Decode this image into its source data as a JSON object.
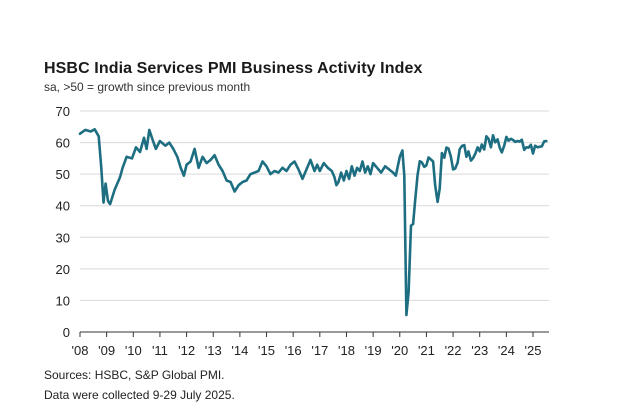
{
  "title": "HSBC India Services PMI Business Activity Index",
  "subtitle": "sa, >50 = growth since previous month",
  "sources": "Sources: HSBC, S&P Global PMI.",
  "collection_note": "Data were collected 9-29 July 2025.",
  "colors": {
    "line": "#1e6e82",
    "grid": "#d9d9d9",
    "axis": "#333333",
    "text": "#222222"
  },
  "chart_data": {
    "type": "line",
    "title": "HSBC India Services PMI Business Activity Index",
    "subtitle": "sa, >50 = growth since previous month",
    "xlabel": "",
    "ylabel": "",
    "ylim": [
      0,
      70
    ],
    "yticks": [
      0,
      10,
      20,
      30,
      40,
      50,
      60,
      70
    ],
    "xlim": [
      2008.0,
      2025.6
    ],
    "xtick_labels": [
      "'08",
      "'09",
      "'10",
      "'11",
      "'12",
      "'13",
      "'14",
      "'15",
      "'16",
      "'17",
      "'18",
      "'19",
      "'20",
      "'21",
      "'22",
      "'23",
      "'24",
      "'25"
    ],
    "grid": "horizontal",
    "series": [
      {
        "values": [
          [
            2008.0,
            62.8
          ],
          [
            2008.2,
            64.0
          ],
          [
            2008.4,
            63.5
          ],
          [
            2008.55,
            64.2
          ],
          [
            2008.7,
            62.0
          ],
          [
            2008.8,
            52.0
          ],
          [
            2008.88,
            41.0
          ],
          [
            2008.96,
            47.0
          ],
          [
            2009.05,
            41.5
          ],
          [
            2009.13,
            40.5
          ],
          [
            2009.3,
            45.0
          ],
          [
            2009.5,
            49.0
          ],
          [
            2009.6,
            52.0
          ],
          [
            2009.75,
            55.5
          ],
          [
            2009.95,
            55.0
          ],
          [
            2010.1,
            58.5
          ],
          [
            2010.25,
            57.0
          ],
          [
            2010.4,
            61.5
          ],
          [
            2010.5,
            58.0
          ],
          [
            2010.6,
            64.0
          ],
          [
            2010.72,
            61.0
          ],
          [
            2010.85,
            58.0
          ],
          [
            2011.0,
            60.5
          ],
          [
            2011.2,
            59.0
          ],
          [
            2011.35,
            60.0
          ],
          [
            2011.5,
            58.0
          ],
          [
            2011.65,
            55.5
          ],
          [
            2011.78,
            52.0
          ],
          [
            2011.9,
            49.5
          ],
          [
            2012.0,
            53.0
          ],
          [
            2012.15,
            54.0
          ],
          [
            2012.3,
            58.0
          ],
          [
            2012.45,
            52.0
          ],
          [
            2012.6,
            55.5
          ],
          [
            2012.75,
            53.5
          ],
          [
            2012.9,
            54.5
          ],
          [
            2013.05,
            56.0
          ],
          [
            2013.2,
            53.0
          ],
          [
            2013.35,
            51.0
          ],
          [
            2013.5,
            48.0
          ],
          [
            2013.65,
            47.5
          ],
          [
            2013.8,
            44.5
          ],
          [
            2013.95,
            46.5
          ],
          [
            2014.1,
            47.5
          ],
          [
            2014.25,
            48.0
          ],
          [
            2014.4,
            50.0
          ],
          [
            2014.55,
            50.5
          ],
          [
            2014.7,
            51.0
          ],
          [
            2014.85,
            54.0
          ],
          [
            2015.0,
            52.5
          ],
          [
            2015.15,
            50.0
          ],
          [
            2015.3,
            51.0
          ],
          [
            2015.45,
            50.5
          ],
          [
            2015.6,
            52.0
          ],
          [
            2015.75,
            51.0
          ],
          [
            2015.9,
            53.0
          ],
          [
            2016.05,
            54.0
          ],
          [
            2016.2,
            51.5
          ],
          [
            2016.35,
            48.5
          ],
          [
            2016.5,
            51.5
          ],
          [
            2016.65,
            54.5
          ],
          [
            2016.8,
            51.0
          ],
          [
            2016.9,
            53.0
          ],
          [
            2017.0,
            51.0
          ],
          [
            2017.15,
            53.5
          ],
          [
            2017.3,
            52.0
          ],
          [
            2017.45,
            51.0
          ],
          [
            2017.55,
            49.0
          ],
          [
            2017.62,
            46.5
          ],
          [
            2017.7,
            47.5
          ],
          [
            2017.8,
            50.5
          ],
          [
            2017.9,
            48.0
          ],
          [
            2018.0,
            51.0
          ],
          [
            2018.1,
            48.5
          ],
          [
            2018.2,
            52.5
          ],
          [
            2018.3,
            49.5
          ],
          [
            2018.4,
            52.0
          ],
          [
            2018.5,
            51.0
          ],
          [
            2018.6,
            54.0
          ],
          [
            2018.7,
            50.5
          ],
          [
            2018.8,
            52.5
          ],
          [
            2018.9,
            50.0
          ],
          [
            2019.0,
            53.5
          ],
          [
            2019.15,
            52.0
          ],
          [
            2019.3,
            50.5
          ],
          [
            2019.45,
            52.5
          ],
          [
            2019.6,
            51.5
          ],
          [
            2019.75,
            50.5
          ],
          [
            2019.85,
            49.5
          ],
          [
            2020.0,
            55.5
          ],
          [
            2020.1,
            57.5
          ],
          [
            2020.17,
            49.5
          ],
          [
            2020.25,
            5.4
          ],
          [
            2020.33,
            12.6
          ],
          [
            2020.42,
            33.7
          ],
          [
            2020.5,
            34.2
          ],
          [
            2020.58,
            41.8
          ],
          [
            2020.67,
            49.8
          ],
          [
            2020.75,
            54.1
          ],
          [
            2020.83,
            53.7
          ],
          [
            2020.92,
            52.3
          ],
          [
            2021.0,
            52.8
          ],
          [
            2021.08,
            55.3
          ],
          [
            2021.17,
            54.6
          ],
          [
            2021.25,
            54.0
          ],
          [
            2021.33,
            46.4
          ],
          [
            2021.42,
            41.2
          ],
          [
            2021.5,
            45.4
          ],
          [
            2021.58,
            56.7
          ],
          [
            2021.67,
            55.2
          ],
          [
            2021.75,
            58.4
          ],
          [
            2021.83,
            58.1
          ],
          [
            2021.92,
            55.5
          ],
          [
            2022.0,
            51.5
          ],
          [
            2022.08,
            51.8
          ],
          [
            2022.17,
            53.6
          ],
          [
            2022.25,
            57.9
          ],
          [
            2022.33,
            58.9
          ],
          [
            2022.42,
            59.2
          ],
          [
            2022.5,
            55.5
          ],
          [
            2022.58,
            57.2
          ],
          [
            2022.67,
            54.3
          ],
          [
            2022.75,
            55.1
          ],
          [
            2022.83,
            56.4
          ],
          [
            2022.92,
            58.5
          ],
          [
            2023.0,
            57.2
          ],
          [
            2023.08,
            59.4
          ],
          [
            2023.17,
            57.8
          ],
          [
            2023.25,
            62.0
          ],
          [
            2023.33,
            61.2
          ],
          [
            2023.42,
            58.5
          ],
          [
            2023.5,
            62.3
          ],
          [
            2023.58,
            60.1
          ],
          [
            2023.67,
            61.0
          ],
          [
            2023.75,
            58.4
          ],
          [
            2023.83,
            56.9
          ],
          [
            2023.92,
            59.0
          ],
          [
            2024.0,
            61.8
          ],
          [
            2024.08,
            60.6
          ],
          [
            2024.17,
            61.2
          ],
          [
            2024.25,
            60.8
          ],
          [
            2024.33,
            60.2
          ],
          [
            2024.42,
            60.5
          ],
          [
            2024.5,
            60.3
          ],
          [
            2024.58,
            60.9
          ],
          [
            2024.67,
            57.7
          ],
          [
            2024.75,
            58.5
          ],
          [
            2024.83,
            58.4
          ],
          [
            2024.92,
            59.3
          ],
          [
            2025.0,
            56.5
          ],
          [
            2025.08,
            59.0
          ],
          [
            2025.17,
            58.5
          ],
          [
            2025.25,
            58.7
          ],
          [
            2025.33,
            58.8
          ],
          [
            2025.42,
            60.4
          ],
          [
            2025.5,
            60.5
          ]
        ]
      }
    ]
  }
}
